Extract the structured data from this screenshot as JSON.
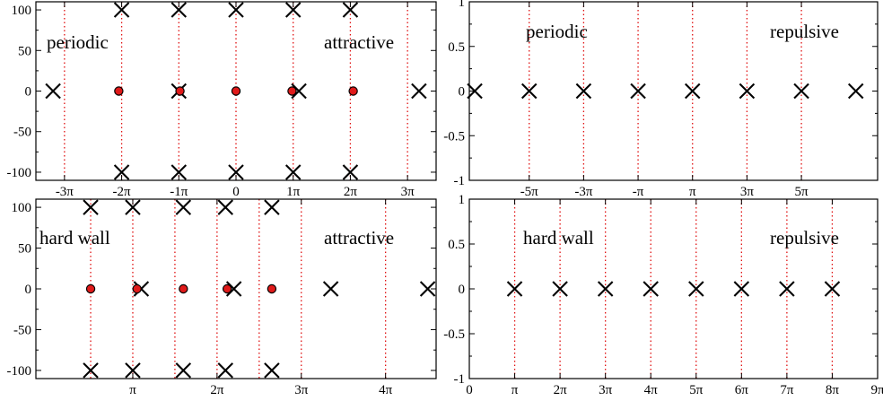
{
  "chart_data": [
    {
      "type": "scatter",
      "panel": "top-left",
      "annotations": [
        "periodic",
        "attractive"
      ],
      "x_unit": "pi",
      "xlim": [
        -3.5,
        3.5
      ],
      "ylim": [
        -110,
        110
      ],
      "x_ticks": [
        -3,
        -2,
        -1,
        0,
        1,
        2,
        3
      ],
      "x_tick_labels": [
        "-3π",
        "-2π",
        "-1π",
        "0",
        "1π",
        "2π",
        "3π"
      ],
      "y_ticks": [
        -100,
        -50,
        0,
        50,
        100
      ],
      "y_tick_labels": [
        "-100",
        "-50",
        "0",
        "50",
        "100"
      ],
      "vlines": [
        -3,
        -2,
        -1,
        0,
        1,
        2,
        3
      ],
      "series": [
        {
          "marker": "cross",
          "points": [
            [
              -3.2,
              0
            ],
            [
              -1,
              0
            ],
            [
              1.1,
              0
            ],
            [
              3.2,
              0
            ],
            [
              -2,
              100
            ],
            [
              -1,
              100
            ],
            [
              0,
              100
            ],
            [
              1,
              100
            ],
            [
              2,
              100
            ],
            [
              -2,
              -100
            ],
            [
              -1,
              -100
            ],
            [
              0,
              -100
            ],
            [
              1,
              -100
            ],
            [
              2,
              -100
            ]
          ]
        },
        {
          "marker": "red-dot",
          "points": [
            [
              -2.05,
              0
            ],
            [
              -0.98,
              0
            ],
            [
              0,
              0
            ],
            [
              0.98,
              0
            ],
            [
              2.05,
              0
            ]
          ]
        }
      ]
    },
    {
      "type": "scatter",
      "panel": "top-right",
      "annotations": [
        "periodic",
        "repulsive"
      ],
      "x_unit": "pi",
      "xlim": [
        -7.2,
        7.8
      ],
      "ylim": [
        -1,
        1
      ],
      "x_ticks": [
        -5,
        -3,
        -1,
        1,
        3,
        5
      ],
      "x_tick_labels": [
        "-5π",
        "-3π",
        "-π",
        "π",
        "3π",
        "5π"
      ],
      "y_ticks": [
        -1,
        -0.5,
        0,
        0.5,
        1
      ],
      "y_tick_labels": [
        "-1",
        "-0.5",
        "0",
        "0.5",
        "1"
      ],
      "vlines": [
        -5,
        -3,
        -1,
        1,
        3,
        5
      ],
      "series": [
        {
          "marker": "cross",
          "points": [
            [
              -7,
              0
            ],
            [
              -5,
              0
            ],
            [
              -3,
              0
            ],
            [
              -1,
              0
            ],
            [
              1,
              0
            ],
            [
              3,
              0
            ],
            [
              5,
              0
            ],
            [
              7,
              0
            ]
          ]
        }
      ]
    },
    {
      "type": "scatter",
      "panel": "bottom-left",
      "annotations": [
        "hard wall",
        "attractive"
      ],
      "x_unit": "pi",
      "xlim": [
        -0.15,
        4.6
      ],
      "ylim": [
        -110,
        110
      ],
      "x_ticks": [
        1,
        2,
        3,
        4
      ],
      "x_tick_labels": [
        "π",
        "2π",
        "3π",
        "4π"
      ],
      "y_ticks": [
        -100,
        -50,
        0,
        50,
        100
      ],
      "y_tick_labels": [
        "-100",
        "-50",
        "0",
        "50",
        "100"
      ],
      "vlines": [
        0.5,
        1,
        1.5,
        2,
        2.5,
        3,
        4
      ],
      "series": [
        {
          "marker": "cross",
          "points": [
            [
              1.1,
              0
            ],
            [
              2.2,
              0
            ],
            [
              3.35,
              0
            ],
            [
              4.5,
              0
            ],
            [
              0.5,
              100
            ],
            [
              1,
              100
            ],
            [
              1.6,
              100
            ],
            [
              2.1,
              100
            ],
            [
              2.65,
              100
            ],
            [
              0.5,
              -100
            ],
            [
              1,
              -100
            ],
            [
              1.6,
              -100
            ],
            [
              2.1,
              -100
            ],
            [
              2.65,
              -100
            ]
          ]
        },
        {
          "marker": "red-dot",
          "points": [
            [
              0.5,
              0
            ],
            [
              1.05,
              0
            ],
            [
              1.6,
              0
            ],
            [
              2.12,
              0
            ],
            [
              2.65,
              0
            ]
          ]
        }
      ]
    },
    {
      "type": "scatter",
      "panel": "bottom-right",
      "annotations": [
        "hard wall",
        "repulsive"
      ],
      "x_unit": "pi",
      "xlim": [
        0,
        9
      ],
      "ylim": [
        -1,
        1
      ],
      "x_ticks": [
        0,
        1,
        2,
        3,
        4,
        5,
        6,
        7,
        8,
        9
      ],
      "x_tick_labels": [
        "0",
        "π",
        "2π",
        "3π",
        "4π",
        "5π",
        "6π",
        "7π",
        "8π",
        "9π"
      ],
      "y_ticks": [
        -1,
        -0.5,
        0,
        0.5,
        1
      ],
      "y_tick_labels": [
        "-1",
        "-0.5",
        "0",
        "0.5",
        "1"
      ],
      "vlines": [
        1,
        2,
        3,
        4,
        5,
        6,
        7,
        8
      ],
      "series": [
        {
          "marker": "cross",
          "points": [
            [
              1,
              0
            ],
            [
              2,
              0
            ],
            [
              3,
              0
            ],
            [
              4,
              0
            ],
            [
              5,
              0
            ],
            [
              6,
              0
            ],
            [
              7,
              0
            ],
            [
              8,
              0
            ]
          ]
        }
      ]
    }
  ]
}
